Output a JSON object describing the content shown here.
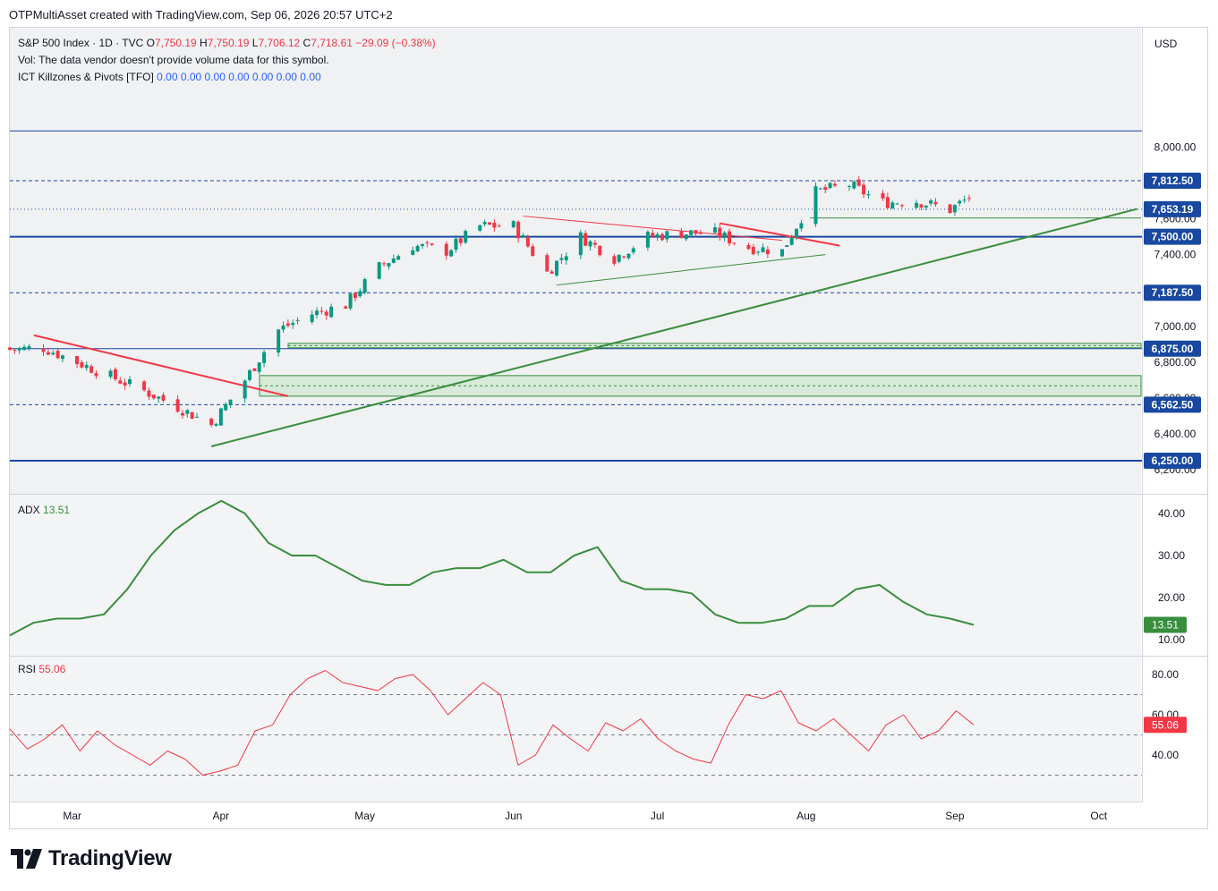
{
  "header": {
    "text": "OTPMultiAsset created with TradingView.com, Sep 06, 2026 20:57 UTC+2"
  },
  "legend": {
    "symbol": "S&P 500 Index · 1D · TVC",
    "o_label": "O",
    "o_value": "7,750.19",
    "h_label": "H",
    "h_value": "7,750.19",
    "l_label": "L",
    "l_value": "7,706.12",
    "c_label": "C",
    "c_value": "7,718.61",
    "change": "−29.09 (−0.38%)",
    "vol_text": "Vol: The data vendor doesn't provide volume data for this symbol.",
    "indicator_name": "ICT Killzones & Pivots [TFO]",
    "indicator_values": "0.00  0.00  0.00  0.00  0.00  0.00  0.00"
  },
  "currency": "USD",
  "price_axis_ticks": [
    "8,000.00",
    "7,600.00",
    "7,400.00",
    "7,000.00",
    "6,800.00",
    "6,600.00",
    "6,400.00",
    "6,200.00"
  ],
  "price_labels": [
    {
      "text": "7,812.50",
      "value": 7812.5,
      "style": "blue"
    },
    {
      "text": "7,653.19",
      "value": 7653.19,
      "style": "blue"
    },
    {
      "text": "7,500.00",
      "value": 7500.0,
      "style": "blue"
    },
    {
      "text": "7,187.50",
      "value": 7187.5,
      "style": "blue"
    },
    {
      "text": "6,875.00",
      "value": 6875.0,
      "style": "blue"
    },
    {
      "text": "6,562.50",
      "value": 6562.5,
      "style": "blue"
    },
    {
      "text": "6,250.00",
      "value": 6250.0,
      "style": "blue"
    }
  ],
  "adx": {
    "label": "ADX",
    "value": "13.51",
    "ticks": [
      "40.00",
      "30.00",
      "20.00",
      "10.00"
    ],
    "color": "#388e3c"
  },
  "rsi": {
    "label": "RSI",
    "value": "55.06",
    "ticks": [
      "80.00",
      "60.00",
      "40.00"
    ],
    "color": "#f23645"
  },
  "time_axis": [
    "Mar",
    "Apr",
    "May",
    "Jun",
    "Jul",
    "Aug",
    "Sep",
    "Oct"
  ],
  "logo": {
    "text": "TradingView"
  },
  "colors": {
    "up": "#089981",
    "down": "#f23645",
    "level": "#1848a0",
    "trend_green": "#388e3c",
    "trend_red": "#f23645"
  },
  "chart_data": [
    {
      "type": "candlestick",
      "title": "S&P 500 Index · 1D · TVC",
      "x_range": [
        "2026-02-16",
        "2026-10-09"
      ],
      "ylim": [
        6150,
        8100
      ],
      "horizontal_levels": [
        7812.5,
        7653.19,
        7500.0,
        7187.5,
        6875.0,
        6562.5,
        6250.0
      ],
      "series_close": [
        {
          "date": "2026-02-16",
          "close": 6870
        },
        {
          "date": "2026-02-23",
          "close": 6880
        },
        {
          "date": "2026-03-02",
          "close": 6800
        },
        {
          "date": "2026-03-09",
          "close": 6720
        },
        {
          "date": "2026-03-16",
          "close": 6640
        },
        {
          "date": "2026-03-23",
          "close": 6550
        },
        {
          "date": "2026-03-30",
          "close": 6450
        },
        {
          "date": "2026-04-06",
          "close": 6700
        },
        {
          "date": "2026-04-13",
          "close": 6980
        },
        {
          "date": "2026-04-20",
          "close": 7070
        },
        {
          "date": "2026-04-27",
          "close": 7120
        },
        {
          "date": "2026-05-04",
          "close": 7330
        },
        {
          "date": "2026-05-11",
          "close": 7450
        },
        {
          "date": "2026-05-18",
          "close": 7420
        },
        {
          "date": "2026-05-25",
          "close": 7560
        },
        {
          "date": "2026-06-01",
          "close": 7560
        },
        {
          "date": "2026-06-08",
          "close": 7300
        },
        {
          "date": "2026-06-15",
          "close": 7500
        },
        {
          "date": "2026-06-22",
          "close": 7380
        },
        {
          "date": "2026-06-29",
          "close": 7500
        },
        {
          "date": "2026-07-06",
          "close": 7520
        },
        {
          "date": "2026-07-13",
          "close": 7520
        },
        {
          "date": "2026-07-20",
          "close": 7440
        },
        {
          "date": "2026-07-27",
          "close": 7420
        },
        {
          "date": "2026-08-03",
          "close": 7750
        },
        {
          "date": "2026-08-10",
          "close": 7790
        },
        {
          "date": "2026-08-17",
          "close": 7690
        },
        {
          "date": "2026-08-24",
          "close": 7700
        },
        {
          "date": "2026-08-31",
          "close": 7650
        },
        {
          "date": "2026-09-04",
          "close": 7718.61
        }
      ]
    },
    {
      "type": "line",
      "title": "ADX",
      "ylim": [
        8,
        45
      ],
      "series": [
        {
          "name": "ADX",
          "values": [
            11,
            14,
            15,
            15,
            16,
            22,
            30,
            36,
            40,
            43,
            40,
            33,
            30,
            30,
            27,
            24,
            23,
            23,
            26,
            27,
            27,
            29,
            26,
            26,
            30,
            32,
            24,
            22,
            22,
            21,
            16,
            14,
            14,
            15,
            18,
            18,
            22,
            23,
            19,
            16,
            15,
            13.51
          ]
        }
      ]
    },
    {
      "type": "line",
      "title": "RSI",
      "ylim": [
        20,
        90
      ],
      "series": [
        {
          "name": "RSI",
          "values": [
            53,
            43,
            48,
            55,
            42,
            52,
            45,
            40,
            35,
            42,
            38,
            30,
            32,
            35,
            52,
            55,
            70,
            78,
            82,
            76,
            74,
            72,
            78,
            80,
            72,
            60,
            68,
            76,
            70,
            35,
            40,
            55,
            48,
            42,
            56,
            52,
            58,
            48,
            42,
            38,
            36,
            55,
            70,
            68,
            72,
            56,
            52,
            58,
            50,
            42,
            55,
            60,
            48,
            52,
            62,
            55
          ]
        }
      ]
    }
  ]
}
